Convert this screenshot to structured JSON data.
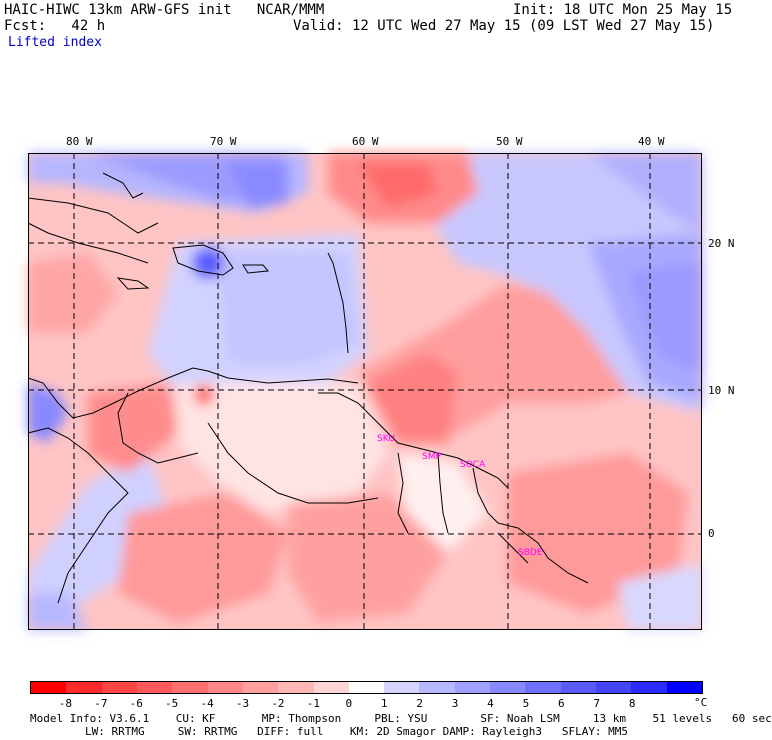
{
  "header": {
    "title": "HAIC-HIWC 13km ARW-GFS init   NCAR/MMM",
    "init": "Init: 18 UTC Mon 25 May 15",
    "fcst": "Fcst:   42 h",
    "valid": "Valid: 12 UTC Wed 27 May 15 (09 LST Wed 27 May 15)",
    "field": "Lifted index"
  },
  "map": {
    "lon_labels": [
      "80 W",
      "70 W",
      "60 W",
      "50 W",
      "40 W"
    ],
    "lat_labels": [
      "20 N",
      "10 N",
      "0"
    ],
    "stations": [
      "SKU",
      "SMP",
      "SOCA",
      "SBDE"
    ]
  },
  "colorbar": {
    "unit": "°C",
    "ticks": [
      "-8",
      "-7",
      "-6",
      "-5",
      "-4",
      "-3",
      "-2",
      "-1",
      "0",
      "1",
      "2",
      "3",
      "4",
      "5",
      "6",
      "7",
      "8"
    ],
    "colors": [
      "#ff0000",
      "#ff2b2b",
      "#ff4444",
      "#ff5a5a",
      "#ff7070",
      "#ff8888",
      "#ffa0a0",
      "#ffb8b8",
      "#ffd5d5",
      "#ffffff",
      "#d5d5ff",
      "#b8b8ff",
      "#a0a0ff",
      "#8888ff",
      "#7070ff",
      "#5a5aff",
      "#4444ff",
      "#2b2bff",
      "#0000ff"
    ]
  },
  "footer": {
    "line1": "Model Info: V3.6.1    CU: KF       MP: Thompson     PBL: YSU        SF: Noah LSM     13 km    51 levels   60 sec",
    "line2": "LW: RRTMG     SW: RRTMG   DIFF: full    KM: 2D Smagor DAMP: Rayleigh3   SFLAY: MM5"
  }
}
